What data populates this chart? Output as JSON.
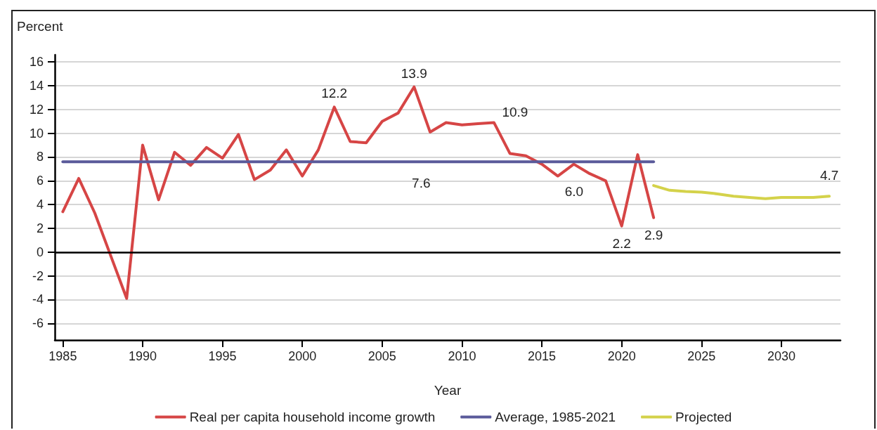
{
  "chart_data": {
    "type": "line",
    "ylabel": "Percent",
    "xlabel": "Year",
    "xlim": [
      1984.5,
      2033.7
    ],
    "xticks": [
      1985,
      1990,
      1995,
      2000,
      2005,
      2010,
      2015,
      2020,
      2025,
      2030
    ],
    "ylim": [
      -7.4,
      16.6
    ],
    "yticks": [
      -6,
      -4,
      -2,
      0,
      2,
      4,
      6,
      8,
      10,
      12,
      14,
      16
    ],
    "grid": "y",
    "legend": "bottom",
    "marker": "none",
    "line_style": "solid",
    "ref_lines": [
      {
        "axis": "y",
        "value": 0,
        "color": "#000000"
      }
    ],
    "series": [
      {
        "name": "Real per capita household income growth",
        "color": "#d64545",
        "x": [
          1985,
          1986,
          1987,
          1988,
          1989,
          1990,
          1991,
          1992,
          1993,
          1994,
          1995,
          1996,
          1997,
          1998,
          1999,
          2000,
          2001,
          2002,
          2003,
          2004,
          2005,
          2006,
          2007,
          2008,
          2009,
          2010,
          2011,
          2012,
          2013,
          2014,
          2015,
          2016,
          2017,
          2018,
          2019,
          2020,
          2021,
          2022
        ],
        "values": [
          3.4,
          6.2,
          3.3,
          -0.3,
          -3.9,
          9.0,
          4.4,
          8.4,
          7.3,
          8.8,
          7.9,
          9.9,
          6.1,
          6.9,
          8.6,
          6.4,
          8.6,
          12.2,
          9.3,
          9.2,
          11.0,
          11.7,
          13.9,
          10.1,
          10.9,
          10.7,
          10.8,
          10.9,
          8.3,
          8.1,
          7.4,
          6.4,
          7.4,
          6.6,
          6.0,
          2.2,
          8.2,
          2.9
        ],
        "value_labels": [
          null,
          null,
          null,
          null,
          null,
          null,
          null,
          null,
          null,
          null,
          null,
          null,
          null,
          null,
          null,
          null,
          null,
          "12.2",
          null,
          null,
          null,
          null,
          "13.9",
          null,
          null,
          null,
          null,
          "10.9",
          null,
          null,
          null,
          null,
          null,
          null,
          "6.0",
          "2.2",
          null,
          "2.9"
        ]
      },
      {
        "name": "Average, 1985-2021",
        "color": "#5a5a9a",
        "x": [
          1985,
          2007,
          2022
        ],
        "values": [
          7.6,
          7.6,
          7.6
        ],
        "value_labels": [
          null,
          "7.6",
          null
        ]
      },
      {
        "name": "Projected",
        "color": "#d4d24a",
        "x": [
          2022,
          2023,
          2024,
          2025,
          2026,
          2027,
          2028,
          2029,
          2030,
          2031,
          2032,
          2033
        ],
        "values": [
          5.6,
          5.2,
          5.1,
          5.05,
          4.9,
          4.7,
          4.6,
          4.5,
          4.6,
          4.6,
          4.6,
          4.7
        ],
        "value_labels": [
          null,
          null,
          null,
          null,
          null,
          null,
          null,
          null,
          null,
          null,
          null,
          "4.7"
        ]
      }
    ]
  }
}
